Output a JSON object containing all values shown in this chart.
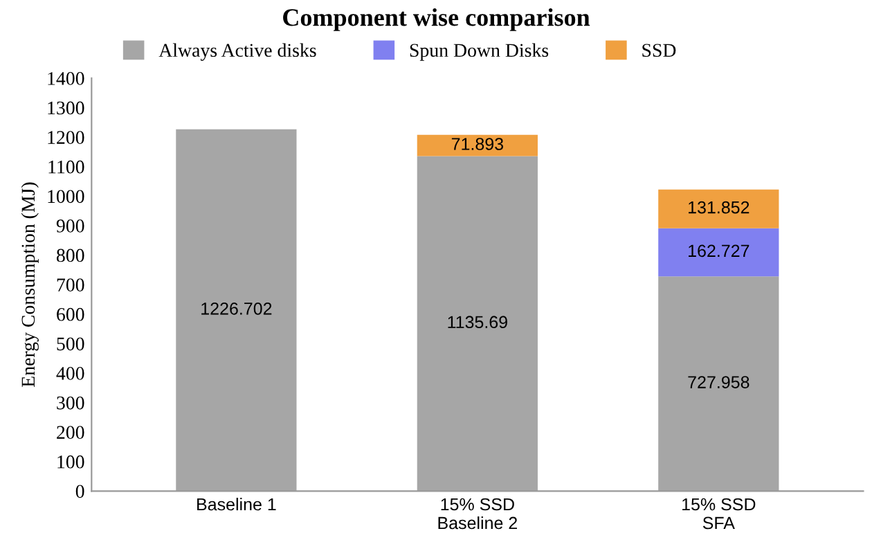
{
  "chart_data": {
    "type": "bar",
    "title": "Component wise comparison",
    "ylabel": "Energy Consumption (MJ)",
    "categories": [
      "Baseline 1",
      "15% SSD\nBaseline 2",
      "15% SSD\nSFA"
    ],
    "stacked": true,
    "data_labels": true,
    "legend": "top",
    "grid": false,
    "ylim": [
      0,
      1400
    ],
    "yticks": [
      0,
      100,
      200,
      300,
      400,
      500,
      600,
      700,
      800,
      900,
      1000,
      1100,
      1200,
      1300,
      1400
    ],
    "series": [
      {
        "name": "Always Active disks",
        "color": "#a6a6a6",
        "values": [
          1226.702,
          1135.69,
          727.958
        ]
      },
      {
        "name": "Spun Down Disks",
        "color": "#8080f0",
        "values": [
          null,
          null,
          162.727
        ]
      },
      {
        "name": "SSD",
        "color": "#f0a040",
        "values": [
          null,
          71.893,
          131.852
        ]
      }
    ]
  }
}
